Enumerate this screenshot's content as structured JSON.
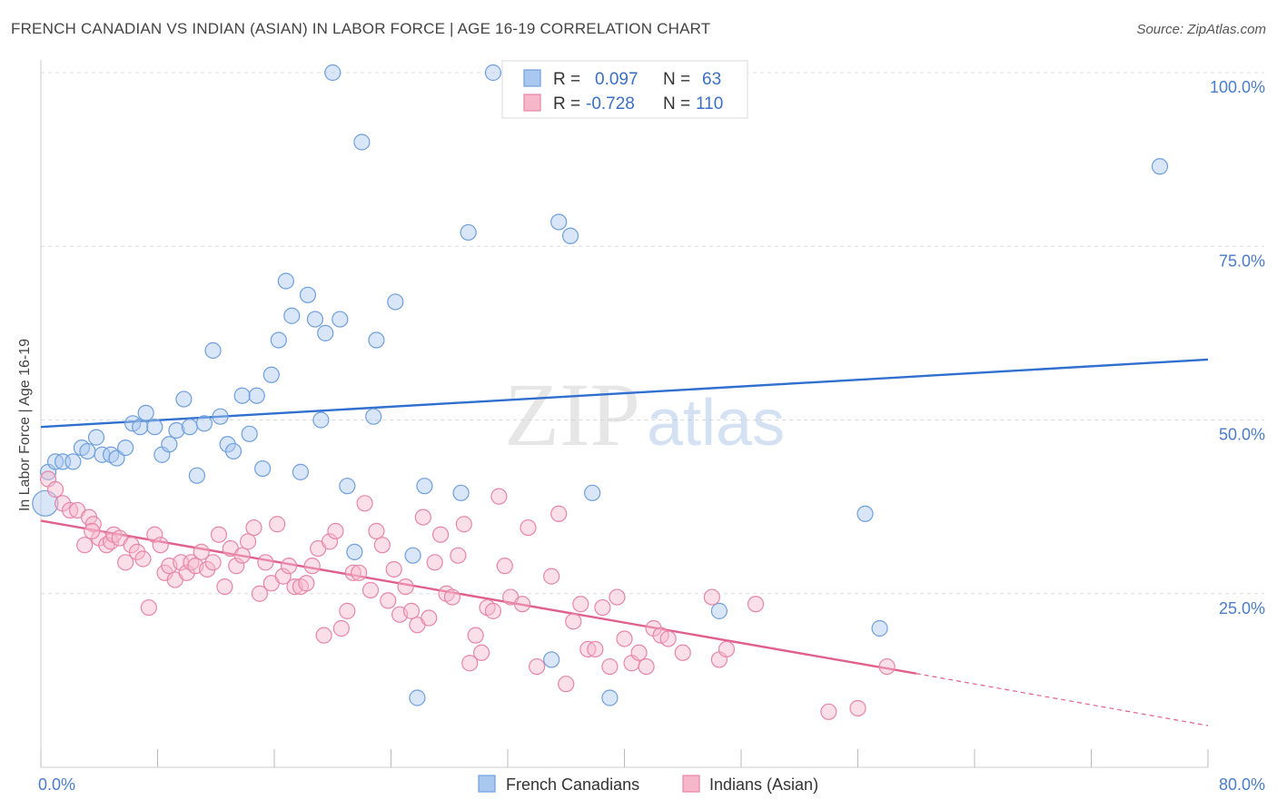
{
  "title": "FRENCH CANADIAN VS INDIAN (ASIAN) IN LABOR FORCE | AGE 16-19 CORRELATION CHART",
  "source": "Source: ZipAtlas.com",
  "watermark": {
    "zip": "ZIP",
    "atlas": "atlas"
  },
  "chart_data": {
    "type": "scatter",
    "ylabel": "In Labor Force | Age 16-19",
    "xlim": [
      0,
      80
    ],
    "ylim": [
      0,
      100
    ],
    "x_tick_labels": [
      {
        "value": 0,
        "label": "0.0%"
      },
      {
        "value": 80,
        "label": "80.0%"
      }
    ],
    "y_tick_labels": [
      {
        "value": 100,
        "label": "100.0%"
      },
      {
        "value": 75,
        "label": "75.0%"
      },
      {
        "value": 50,
        "label": "50.0%"
      },
      {
        "value": 25,
        "label": "25.0%"
      }
    ],
    "grid": "horizontal dashed",
    "legend_position": "bottom",
    "stats_box": [
      {
        "r_label": "R =",
        "r_value": "0.097",
        "n_label": "N =",
        "n_value": "63"
      },
      {
        "r_label": "R =",
        "r_value": "-0.728",
        "n_label": "N =",
        "n_value": "110"
      }
    ],
    "series": [
      {
        "name": "French Canadians",
        "color": "#a8c8ef",
        "stroke": "#6f9fdc",
        "trend_color": "#2f6fd0",
        "trend": {
          "x": [
            0,
            80
          ],
          "y": [
            49.0,
            58.7
          ]
        },
        "points": [
          [
            0.3,
            38.0
          ],
          [
            0.5,
            42.5
          ],
          [
            1.0,
            44.0
          ],
          [
            1.5,
            44.0
          ],
          [
            2.2,
            44.0
          ],
          [
            2.8,
            46.0
          ],
          [
            3.2,
            45.5
          ],
          [
            3.8,
            47.5
          ],
          [
            4.2,
            45.0
          ],
          [
            4.8,
            45.0
          ],
          [
            5.2,
            44.5
          ],
          [
            5.8,
            46.0
          ],
          [
            6.3,
            49.5
          ],
          [
            6.8,
            49.0
          ],
          [
            7.2,
            51.0
          ],
          [
            7.8,
            49.0
          ],
          [
            8.3,
            45.0
          ],
          [
            8.8,
            46.5
          ],
          [
            9.3,
            48.5
          ],
          [
            9.8,
            53.0
          ],
          [
            10.2,
            49.0
          ],
          [
            10.7,
            42.0
          ],
          [
            11.2,
            49.5
          ],
          [
            11.8,
            60.0
          ],
          [
            12.3,
            50.5
          ],
          [
            12.8,
            46.5
          ],
          [
            13.2,
            45.5
          ],
          [
            13.8,
            53.5
          ],
          [
            14.3,
            48.0
          ],
          [
            14.8,
            53.5
          ],
          [
            15.2,
            43.0
          ],
          [
            15.8,
            56.5
          ],
          [
            16.3,
            61.5
          ],
          [
            16.8,
            70.0
          ],
          [
            17.2,
            65.0
          ],
          [
            17.8,
            42.5
          ],
          [
            18.3,
            68.0
          ],
          [
            18.8,
            64.5
          ],
          [
            19.2,
            50.0
          ],
          [
            19.5,
            62.5
          ],
          [
            20.0,
            100.0
          ],
          [
            20.5,
            64.5
          ],
          [
            21.0,
            40.5
          ],
          [
            21.5,
            31.0
          ],
          [
            22.0,
            90.0
          ],
          [
            22.8,
            50.5
          ],
          [
            23.0,
            61.5
          ],
          [
            24.3,
            67.0
          ],
          [
            25.5,
            30.5
          ],
          [
            25.8,
            10.0
          ],
          [
            26.3,
            40.5
          ],
          [
            28.8,
            39.5
          ],
          [
            29.3,
            77.0
          ],
          [
            31.0,
            100.0
          ],
          [
            35.0,
            15.5
          ],
          [
            35.5,
            78.5
          ],
          [
            36.3,
            76.5
          ],
          [
            37.8,
            39.5
          ],
          [
            39.0,
            10.0
          ],
          [
            46.5,
            22.5
          ],
          [
            56.5,
            36.5
          ],
          [
            57.5,
            20.0
          ],
          [
            76.7,
            86.5
          ]
        ]
      },
      {
        "name": "Indians (Asian)",
        "color": "#f7b7cb",
        "stroke": "#e686a6",
        "trend_color": "#e0608c",
        "trend": {
          "x": [
            0,
            60
          ],
          "y": [
            35.5,
            13.5
          ]
        },
        "trend_extension": {
          "x": [
            60,
            80
          ],
          "y": [
            13.5,
            6.0
          ]
        },
        "points": [
          [
            0.5,
            41.5
          ],
          [
            1.0,
            40.0
          ],
          [
            1.5,
            38.0
          ],
          [
            2.0,
            37.0
          ],
          [
            2.5,
            37.0
          ],
          [
            3.0,
            32.0
          ],
          [
            3.3,
            36.0
          ],
          [
            3.6,
            35.0
          ],
          [
            4.0,
            33.0
          ],
          [
            4.5,
            32.0
          ],
          [
            4.8,
            32.5
          ],
          [
            5.0,
            33.5
          ],
          [
            5.4,
            33.0
          ],
          [
            5.8,
            29.5
          ],
          [
            6.2,
            32.0
          ],
          [
            6.6,
            31.0
          ],
          [
            7.0,
            30.0
          ],
          [
            7.4,
            23.0
          ],
          [
            7.8,
            33.5
          ],
          [
            8.2,
            32.0
          ],
          [
            8.5,
            28.0
          ],
          [
            8.8,
            29.0
          ],
          [
            9.2,
            27.0
          ],
          [
            9.6,
            29.5
          ],
          [
            10.0,
            28.0
          ],
          [
            10.3,
            29.5
          ],
          [
            10.6,
            29.0
          ],
          [
            11.0,
            31.0
          ],
          [
            11.4,
            28.5
          ],
          [
            11.8,
            29.5
          ],
          [
            12.2,
            33.5
          ],
          [
            12.6,
            26.0
          ],
          [
            13.0,
            31.5
          ],
          [
            13.4,
            29.0
          ],
          [
            13.8,
            30.5
          ],
          [
            14.2,
            32.5
          ],
          [
            14.6,
            34.5
          ],
          [
            15.0,
            25.0
          ],
          [
            15.4,
            29.5
          ],
          [
            15.8,
            26.5
          ],
          [
            16.2,
            35.0
          ],
          [
            16.6,
            27.5
          ],
          [
            17.0,
            29.0
          ],
          [
            17.4,
            26.0
          ],
          [
            17.8,
            26.0
          ],
          [
            18.2,
            26.5
          ],
          [
            18.6,
            29.0
          ],
          [
            19.0,
            31.5
          ],
          [
            19.4,
            19.0
          ],
          [
            19.8,
            32.5
          ],
          [
            20.2,
            34.0
          ],
          [
            20.6,
            20.0
          ],
          [
            21.0,
            22.5
          ],
          [
            21.4,
            28.0
          ],
          [
            21.8,
            28.0
          ],
          [
            22.2,
            38.0
          ],
          [
            22.6,
            25.5
          ],
          [
            23.0,
            34.0
          ],
          [
            23.4,
            32.0
          ],
          [
            23.8,
            24.0
          ],
          [
            24.2,
            28.5
          ],
          [
            24.6,
            22.0
          ],
          [
            25.0,
            26.0
          ],
          [
            25.4,
            22.5
          ],
          [
            25.8,
            20.5
          ],
          [
            26.2,
            36.0
          ],
          [
            26.6,
            21.5
          ],
          [
            27.0,
            29.5
          ],
          [
            27.4,
            33.5
          ],
          [
            27.8,
            25.0
          ],
          [
            28.2,
            24.5
          ],
          [
            28.6,
            30.5
          ],
          [
            29.0,
            35.0
          ],
          [
            29.4,
            15.0
          ],
          [
            29.8,
            19.0
          ],
          [
            30.2,
            16.5
          ],
          [
            30.6,
            23.0
          ],
          [
            31.0,
            22.5
          ],
          [
            31.4,
            39.0
          ],
          [
            31.8,
            29.0
          ],
          [
            32.2,
            24.5
          ],
          [
            33.0,
            23.5
          ],
          [
            33.4,
            34.5
          ],
          [
            34.0,
            14.5
          ],
          [
            35.0,
            27.5
          ],
          [
            35.5,
            36.5
          ],
          [
            36.0,
            12.0
          ],
          [
            36.5,
            21.0
          ],
          [
            37.0,
            23.5
          ],
          [
            37.5,
            17.0
          ],
          [
            38.0,
            17.0
          ],
          [
            38.5,
            23.0
          ],
          [
            39.0,
            14.5
          ],
          [
            39.5,
            24.5
          ],
          [
            40.0,
            18.5
          ],
          [
            40.5,
            15.0
          ],
          [
            41.0,
            16.5
          ],
          [
            41.5,
            14.5
          ],
          [
            42.0,
            20.0
          ],
          [
            42.5,
            19.0
          ],
          [
            43.0,
            18.5
          ],
          [
            44.0,
            16.5
          ],
          [
            46.0,
            24.5
          ],
          [
            46.5,
            15.5
          ],
          [
            47.0,
            17.0
          ],
          [
            49.0,
            23.5
          ],
          [
            54.0,
            8.0
          ],
          [
            56.0,
            8.5
          ],
          [
            58.0,
            14.5
          ],
          [
            3.5,
            34.0
          ]
        ]
      }
    ]
  }
}
